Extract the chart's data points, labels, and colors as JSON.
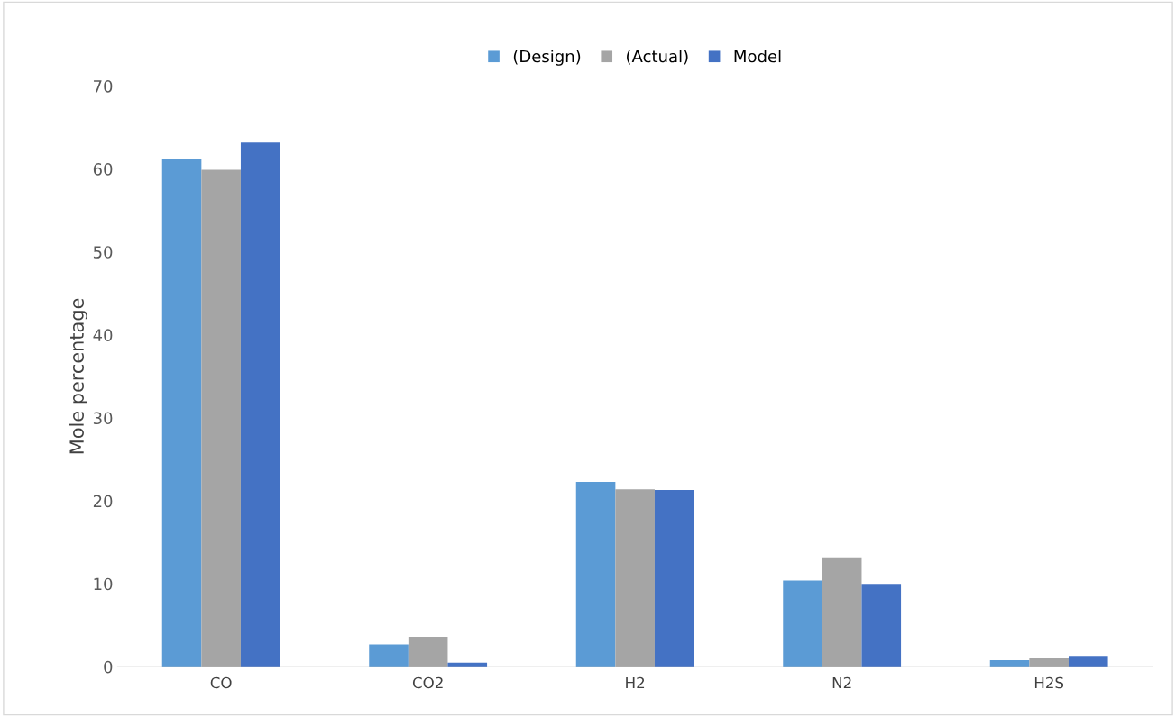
{
  "chart_data": {
    "type": "bar",
    "ylabel": "Mole percentage",
    "categories": [
      "CO",
      "CO2",
      "H2",
      "N2",
      "H2S"
    ],
    "series": [
      {
        "name": "(Design)",
        "color": "#5b9bd5",
        "values": [
          61.2,
          2.7,
          22.3,
          10.4,
          0.8
        ]
      },
      {
        "name": "(Actual)",
        "color": "#a5a5a5",
        "values": [
          59.9,
          3.6,
          21.4,
          13.2,
          1.0
        ]
      },
      {
        "name": "Model",
        "color": "#4472c4",
        "values": [
          63.2,
          0.5,
          21.3,
          10.0,
          1.3
        ]
      }
    ],
    "ylim": [
      0,
      70
    ],
    "yticks": [
      0,
      10,
      20,
      30,
      40,
      50,
      60,
      70
    ],
    "grid": false,
    "legend": "top"
  }
}
